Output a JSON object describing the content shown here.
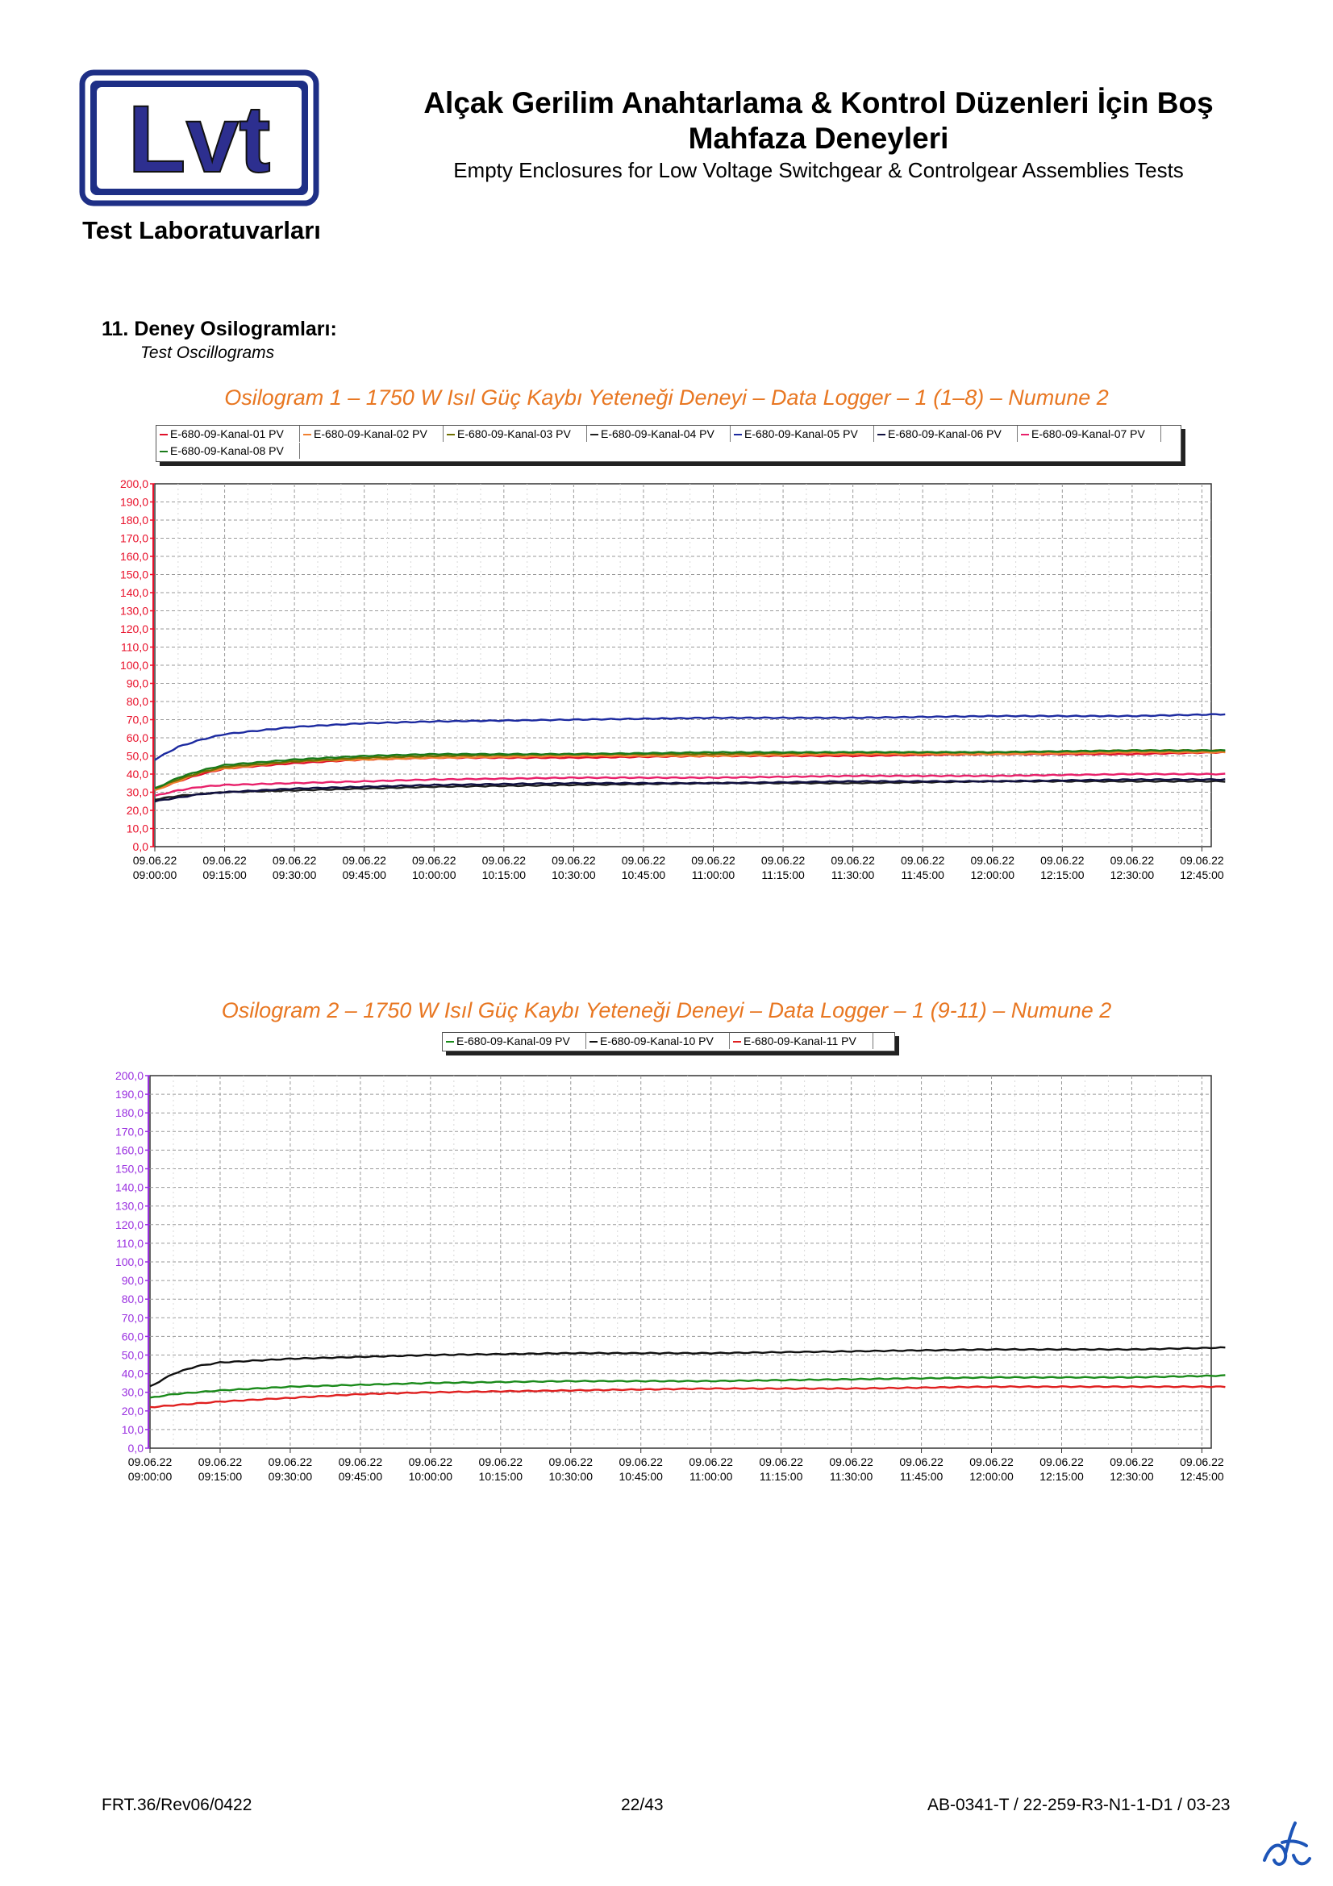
{
  "header": {
    "logo_text": "Lvt",
    "lab_name": "Test Laboratuvarları",
    "title_tr_line1": "Alçak Gerilim Anahtarlama & Kontrol Düzenleri İçin Boş",
    "title_tr_line2": "Mahfaza Deneyleri",
    "title_en": "Empty Enclosures for Low Voltage Switchgear & Controlgear Assemblies Tests"
  },
  "section": {
    "number": "11.",
    "title": "Deney Osilogramları:",
    "subtitle": "Test Oscillograms"
  },
  "footer": {
    "form_code": "FRT.36/Rev06/0422",
    "page": "22/43",
    "report_no": "AB-0341-T / 22-259-R3-N1-1-D1 / 03-23"
  },
  "colors": {
    "title_orange": "#e87722",
    "ch01": "#e0102a",
    "ch02": "#f08030",
    "ch03": "#707000",
    "ch04": "#202020",
    "ch05": "#1c2aa0",
    "ch06": "#101040",
    "ch07": "#e8206a",
    "ch08": "#1a7a1a",
    "ch09": "#1a8a1a",
    "ch10": "#101010",
    "ch11": "#e02020",
    "axis1": "#e8102a",
    "axis2": "#9a30e0"
  },
  "chart_data": [
    {
      "type": "line",
      "title": "Osilogram 1 – 1750 W Isıl Güç Kaybı Yeteneği Deneyi – Data Logger – 1 (1–8) – Numune 2",
      "xlabel": "",
      "ylabel": "",
      "ylim": [
        0,
        200
      ],
      "y_ticks": [
        "0,0",
        "10,0",
        "20,0",
        "30,0",
        "40,0",
        "50,0",
        "60,0",
        "70,0",
        "80,0",
        "90,0",
        "100,0",
        "110,0",
        "120,0",
        "130,0",
        "140,0",
        "150,0",
        "160,0",
        "170,0",
        "180,0",
        "190,0",
        "200,0"
      ],
      "x_ticks_date": [
        "09.06.22",
        "09.06.22",
        "09.06.22",
        "09.06.22",
        "09.06.22",
        "09.06.22",
        "09.06.22",
        "09.06.22",
        "09.06.22",
        "09.06.22",
        "09.06.22",
        "09.06.22",
        "09.06.22",
        "09.06.22",
        "09.06.22",
        "09.06.22"
      ],
      "x_ticks_time": [
        "09:00:00",
        "09:15:00",
        "09:30:00",
        "09:45:00",
        "10:00:00",
        "10:15:00",
        "10:30:00",
        "10:45:00",
        "11:00:00",
        "11:15:00",
        "11:30:00",
        "11:45:00",
        "12:00:00",
        "12:15:00",
        "12:30:00",
        "12:45:00"
      ],
      "x": [
        "09:00",
        "09:05",
        "09:10",
        "09:15",
        "09:30",
        "09:45",
        "10:00",
        "10:30",
        "11:00",
        "11:30",
        "12:00",
        "12:30",
        "12:50"
      ],
      "grid": true,
      "legend_position": "top",
      "series": [
        {
          "name": "E-680-09-Kanal-01 PV",
          "values": [
            31,
            36,
            40,
            43,
            46,
            48,
            49,
            49,
            50,
            50,
            51,
            51,
            52
          ]
        },
        {
          "name": "E-680-09-Kanal-02 PV",
          "values": [
            31,
            36,
            41,
            43,
            47,
            48,
            49,
            50,
            50,
            51,
            51,
            52,
            52
          ]
        },
        {
          "name": "E-680-09-Kanal-03 PV",
          "values": [
            32,
            37,
            41,
            44,
            47,
            49,
            50,
            51,
            51,
            52,
            52,
            53,
            53
          ]
        },
        {
          "name": "E-680-09-Kanal-04 PV",
          "values": [
            26,
            28,
            29,
            30,
            31,
            32,
            33,
            34,
            35,
            35,
            36,
            36,
            36
          ]
        },
        {
          "name": "E-680-09-Kanal-05 PV",
          "values": [
            48,
            55,
            59,
            62,
            66,
            68,
            69,
            70,
            71,
            71,
            72,
            72,
            73
          ]
        },
        {
          "name": "E-680-09-Kanal-06 PV",
          "values": [
            25,
            27,
            29,
            30,
            32,
            33,
            34,
            35,
            35,
            36,
            36,
            37,
            37
          ]
        },
        {
          "name": "E-680-09-Kanal-07 PV",
          "values": [
            28,
            31,
            33,
            34,
            35,
            36,
            37,
            38,
            38,
            39,
            39,
            40,
            40
          ]
        },
        {
          "name": "E-680-09-Kanal-08 PV",
          "values": [
            32,
            38,
            42,
            45,
            48,
            50,
            51,
            51,
            52,
            52,
            52,
            53,
            53
          ]
        }
      ]
    },
    {
      "type": "line",
      "title": "Osilogram 2 – 1750 W Isıl Güç Kaybı Yeteneği Deneyi – Data Logger – 1 (9-11) – Numune 2",
      "xlabel": "",
      "ylabel": "",
      "ylim": [
        0,
        200
      ],
      "y_ticks": [
        "0,0",
        "10,0",
        "20,0",
        "30,0",
        "40,0",
        "50,0",
        "60,0",
        "70,0",
        "80,0",
        "90,0",
        "100,0",
        "110,0",
        "120,0",
        "130,0",
        "140,0",
        "150,0",
        "160,0",
        "170,0",
        "180,0",
        "190,0",
        "200,0"
      ],
      "x_ticks_date": [
        "09.06.22",
        "09.06.22",
        "09.06.22",
        "09.06.22",
        "09.06.22",
        "09.06.22",
        "09.06.22",
        "09.06.22",
        "09.06.22",
        "09.06.22",
        "09.06.22",
        "09.06.22",
        "09.06.22",
        "09.06.22",
        "09.06.22",
        "09.06.22"
      ],
      "x_ticks_time": [
        "09:00:00",
        "09:15:00",
        "09:30:00",
        "09:45:00",
        "10:00:00",
        "10:15:00",
        "10:30:00",
        "10:45:00",
        "11:00:00",
        "11:15:00",
        "11:30:00",
        "11:45:00",
        "12:00:00",
        "12:15:00",
        "12:30:00",
        "12:45:00"
      ],
      "x": [
        "09:00",
        "09:05",
        "09:10",
        "09:15",
        "09:30",
        "09:45",
        "10:00",
        "10:30",
        "11:00",
        "11:30",
        "12:00",
        "12:30",
        "12:50"
      ],
      "grid": true,
      "legend_position": "top",
      "series": [
        {
          "name": "E-680-09-Kanal-09 PV",
          "values": [
            27,
            29,
            30,
            31,
            33,
            34,
            35,
            36,
            36,
            37,
            38,
            38,
            39
          ]
        },
        {
          "name": "E-680-09-Kanal-10 PV",
          "values": [
            33,
            40,
            44,
            46,
            48,
            49,
            50,
            51,
            51,
            52,
            53,
            53,
            54
          ]
        },
        {
          "name": "E-680-09-Kanal-11 PV",
          "values": [
            22,
            23,
            24,
            25,
            27,
            29,
            30,
            31,
            32,
            32,
            33,
            33,
            33
          ]
        }
      ]
    }
  ]
}
